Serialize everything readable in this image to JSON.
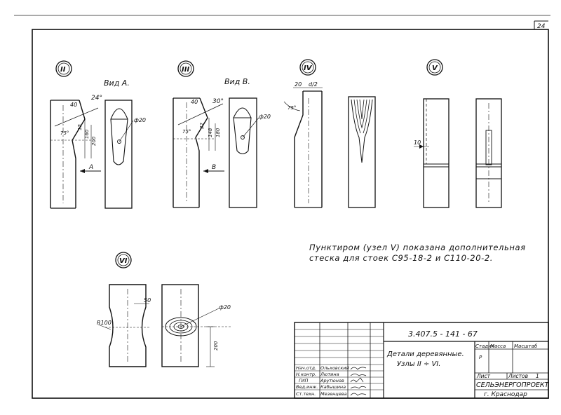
{
  "sheet": {
    "sheet_number": "24",
    "note_line1": "Пунктиром (узел V) показана дополнительная",
    "note_line2": "стеска для стоек С95-18-2 и С110-20-2."
  },
  "nodes": [
    {
      "id": "II",
      "view_label": "Вид А.",
      "section_mark": "A",
      "dims": {
        "top": "40",
        "angle": "24°",
        "width": "15",
        "h1": "160",
        "h2": "200",
        "bevel": "75°",
        "dia": "ф20"
      }
    },
    {
      "id": "III",
      "view_label": "Вид В.",
      "section_mark": "B",
      "dims": {
        "top": "40",
        "angle": "30°",
        "width": "22",
        "h1": "148",
        "h2": "180",
        "bevel": "75°",
        "dia": "ф20"
      }
    },
    {
      "id": "IV",
      "dims": {
        "top": "20",
        "top2": "d/2",
        "bevel": "75°"
      }
    },
    {
      "id": "V",
      "dims": {
        "offset": "10"
      }
    },
    {
      "id": "VI",
      "dims": {
        "depth": "50",
        "radius": "R100",
        "dia": "ф20",
        "height": "200"
      }
    }
  ],
  "title_block": {
    "code": "3.407.5 - 141 - 67",
    "title_line1": "Детали деревянные.",
    "title_line2": "Узлы II ÷ VI.",
    "stage_header": "Стадия",
    "mass_header": "Масса",
    "scale_header": "Масштаб",
    "stage_value": "Р",
    "sheet_label": "Лист",
    "sheets_label": "Листов",
    "sheets_value": "1",
    "organization": "СЕЛЬЭНЕРГОПРОЕКТ",
    "city": "г. Краснодар",
    "roles": [
      {
        "role": "Нач.отд.",
        "name": "Ольховский"
      },
      {
        "role": "Н.контр.",
        "name": "Лютина"
      },
      {
        "role": "ГИП",
        "name": "Арутюнов"
      },
      {
        "role": "Вед.инж.",
        "name": "Кабышина"
      },
      {
        "role": "Ст.техн.",
        "name": "Мезенцева"
      }
    ]
  }
}
